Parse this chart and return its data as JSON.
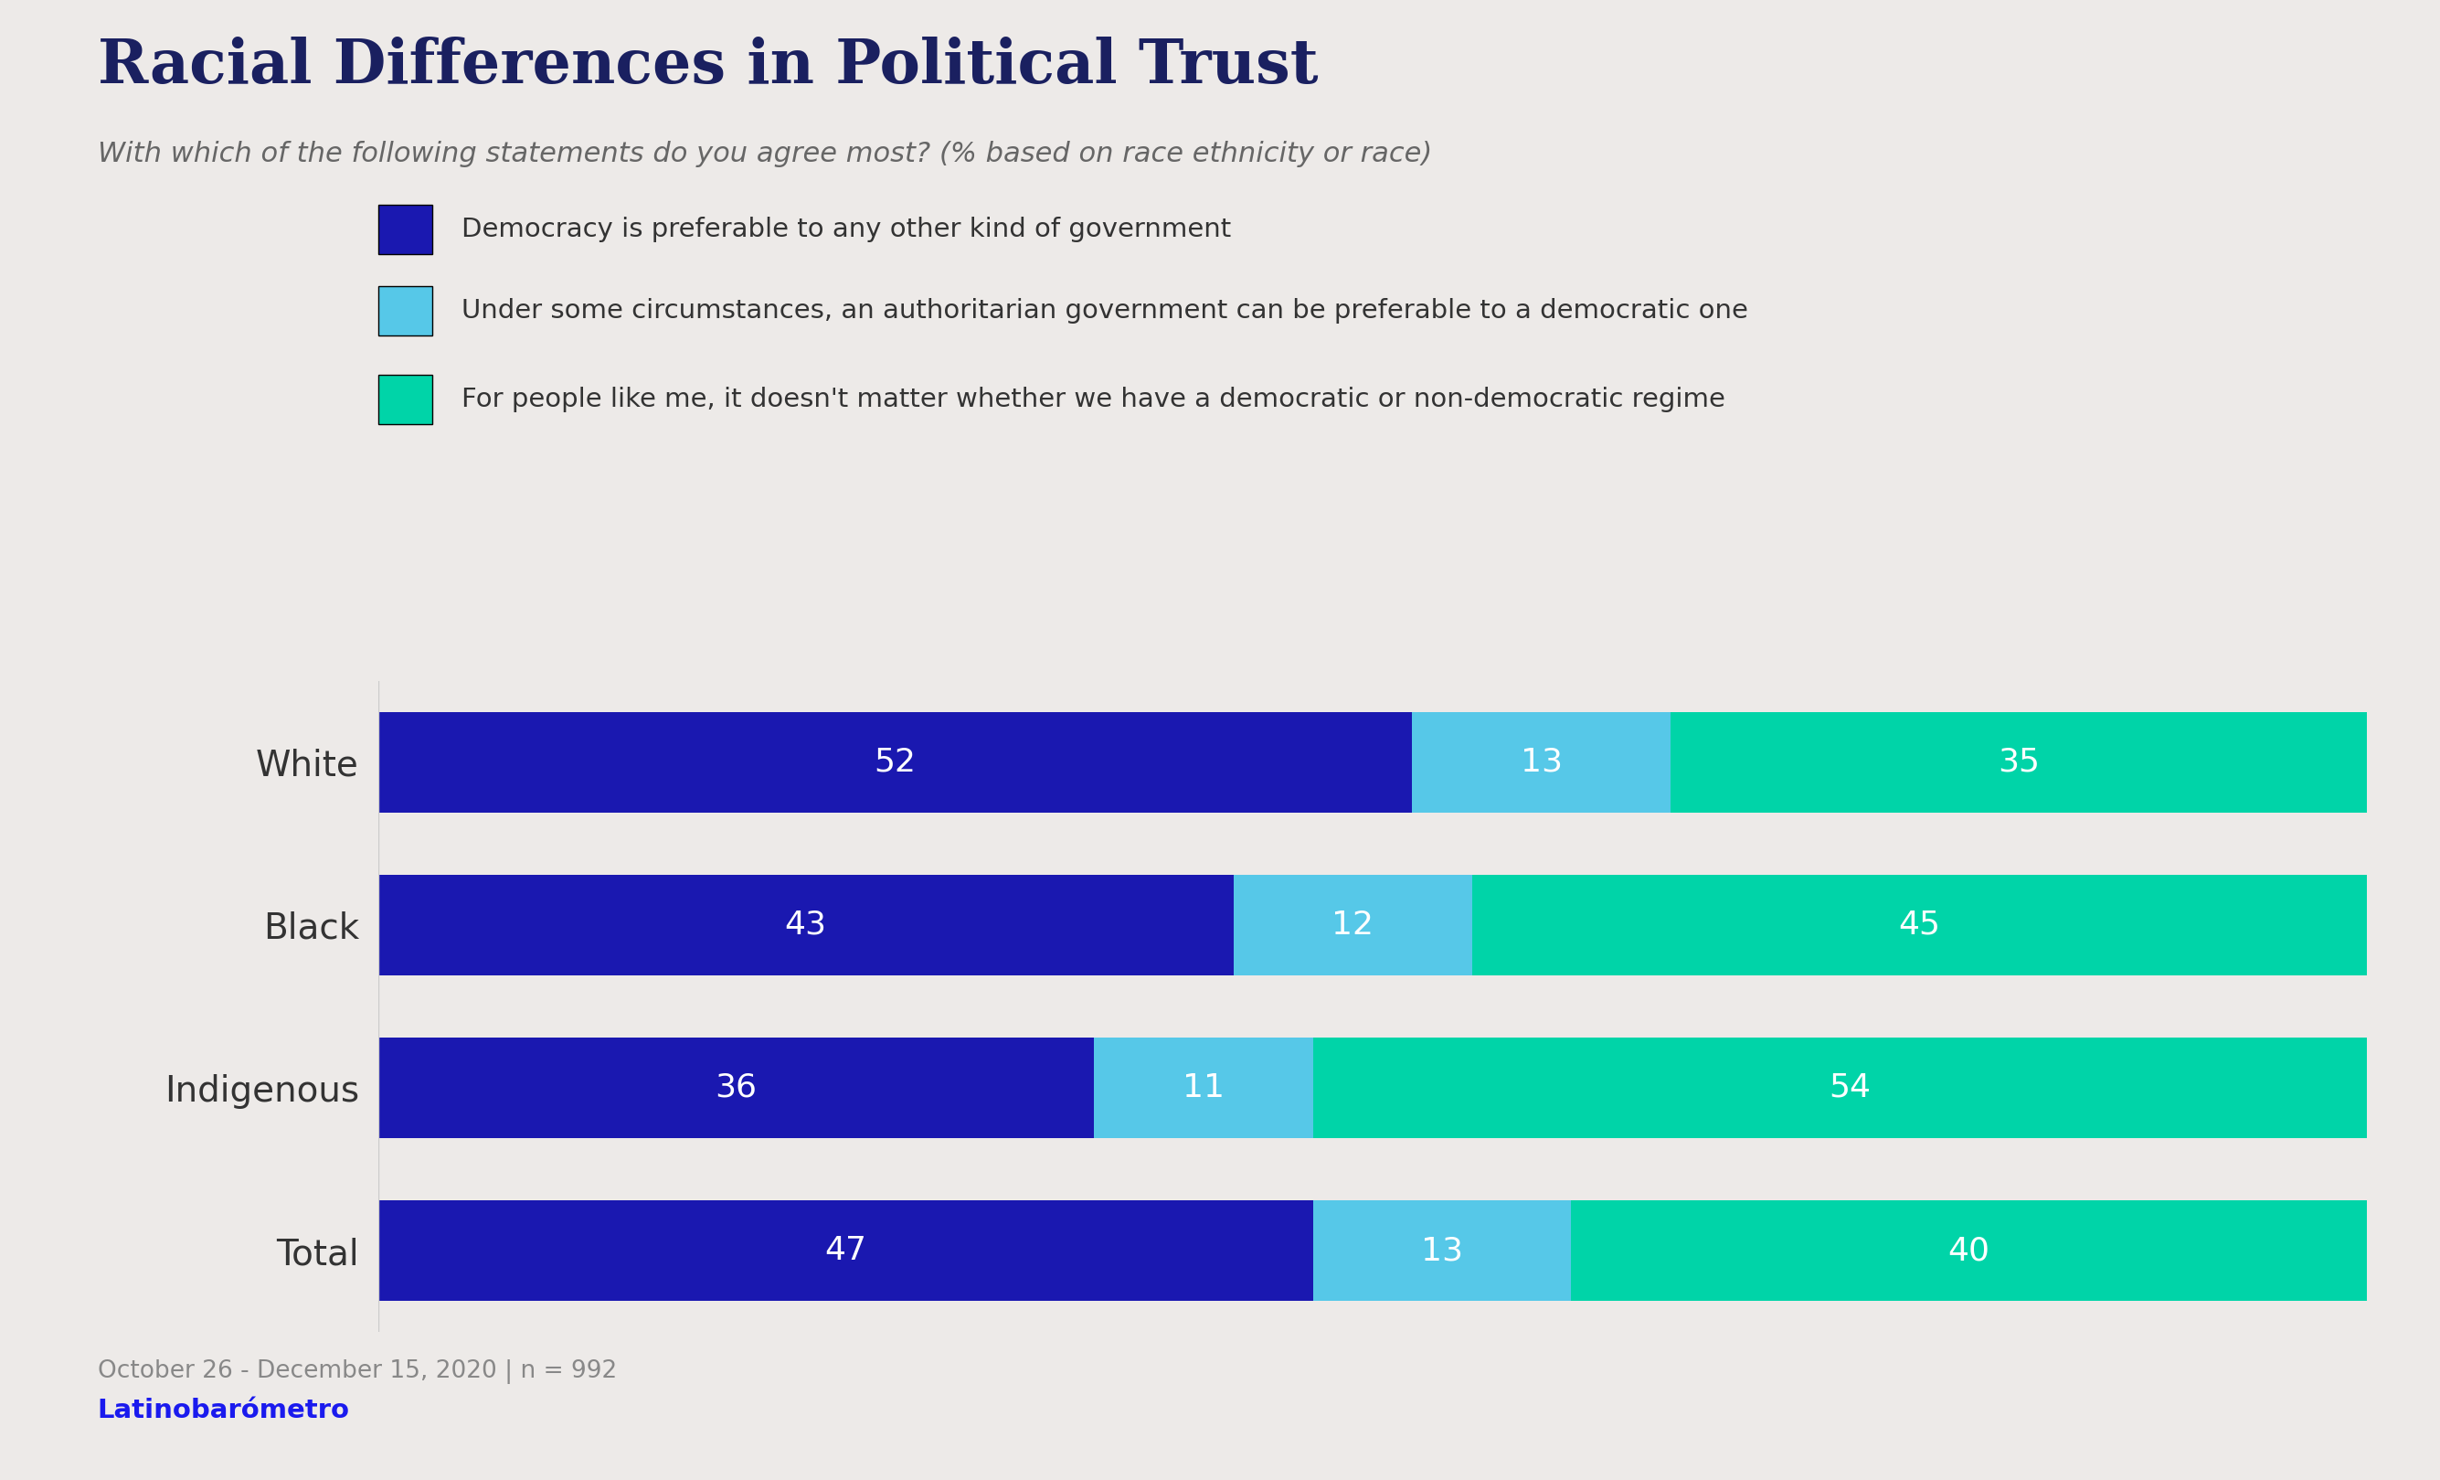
{
  "title": "Racial Differences in Political Trust",
  "subtitle": "With which of the following statements do you agree most? (% based on race ethnicity or race)",
  "categories": [
    "Total",
    "Indigenous",
    "Black",
    "White"
  ],
  "series": [
    {
      "label": "Democracy is preferable to any other kind of government",
      "color": "#1a18b0",
      "values": [
        47,
        36,
        43,
        52
      ]
    },
    {
      "label": "Under some circumstances, an authoritarian government can be preferable to a democratic one",
      "color": "#56c8e8",
      "values": [
        13,
        11,
        12,
        13
      ]
    },
    {
      "label": "For people like me, it doesn't matter whether we have a democratic or non-democratic regime",
      "color": "#00d4a8",
      "values": [
        40,
        54,
        45,
        35
      ]
    }
  ],
  "background_color": "#edeae8",
  "title_color": "#1a2060",
  "subtitle_color": "#666666",
  "bar_text_color": "#ffffff",
  "footnote_text": "October 26 - December 15, 2020 | n = 992",
  "footnote_color": "#888888",
  "source_text": "Latinobarómetro",
  "source_color": "#1a1aee",
  "bar_height": 0.62,
  "label_fontsize": 26,
  "ytick_fontsize": 28,
  "title_fontsize": 48,
  "subtitle_fontsize": 22,
  "legend_fontsize": 21,
  "footnote_fontsize": 19,
  "source_fontsize": 21
}
